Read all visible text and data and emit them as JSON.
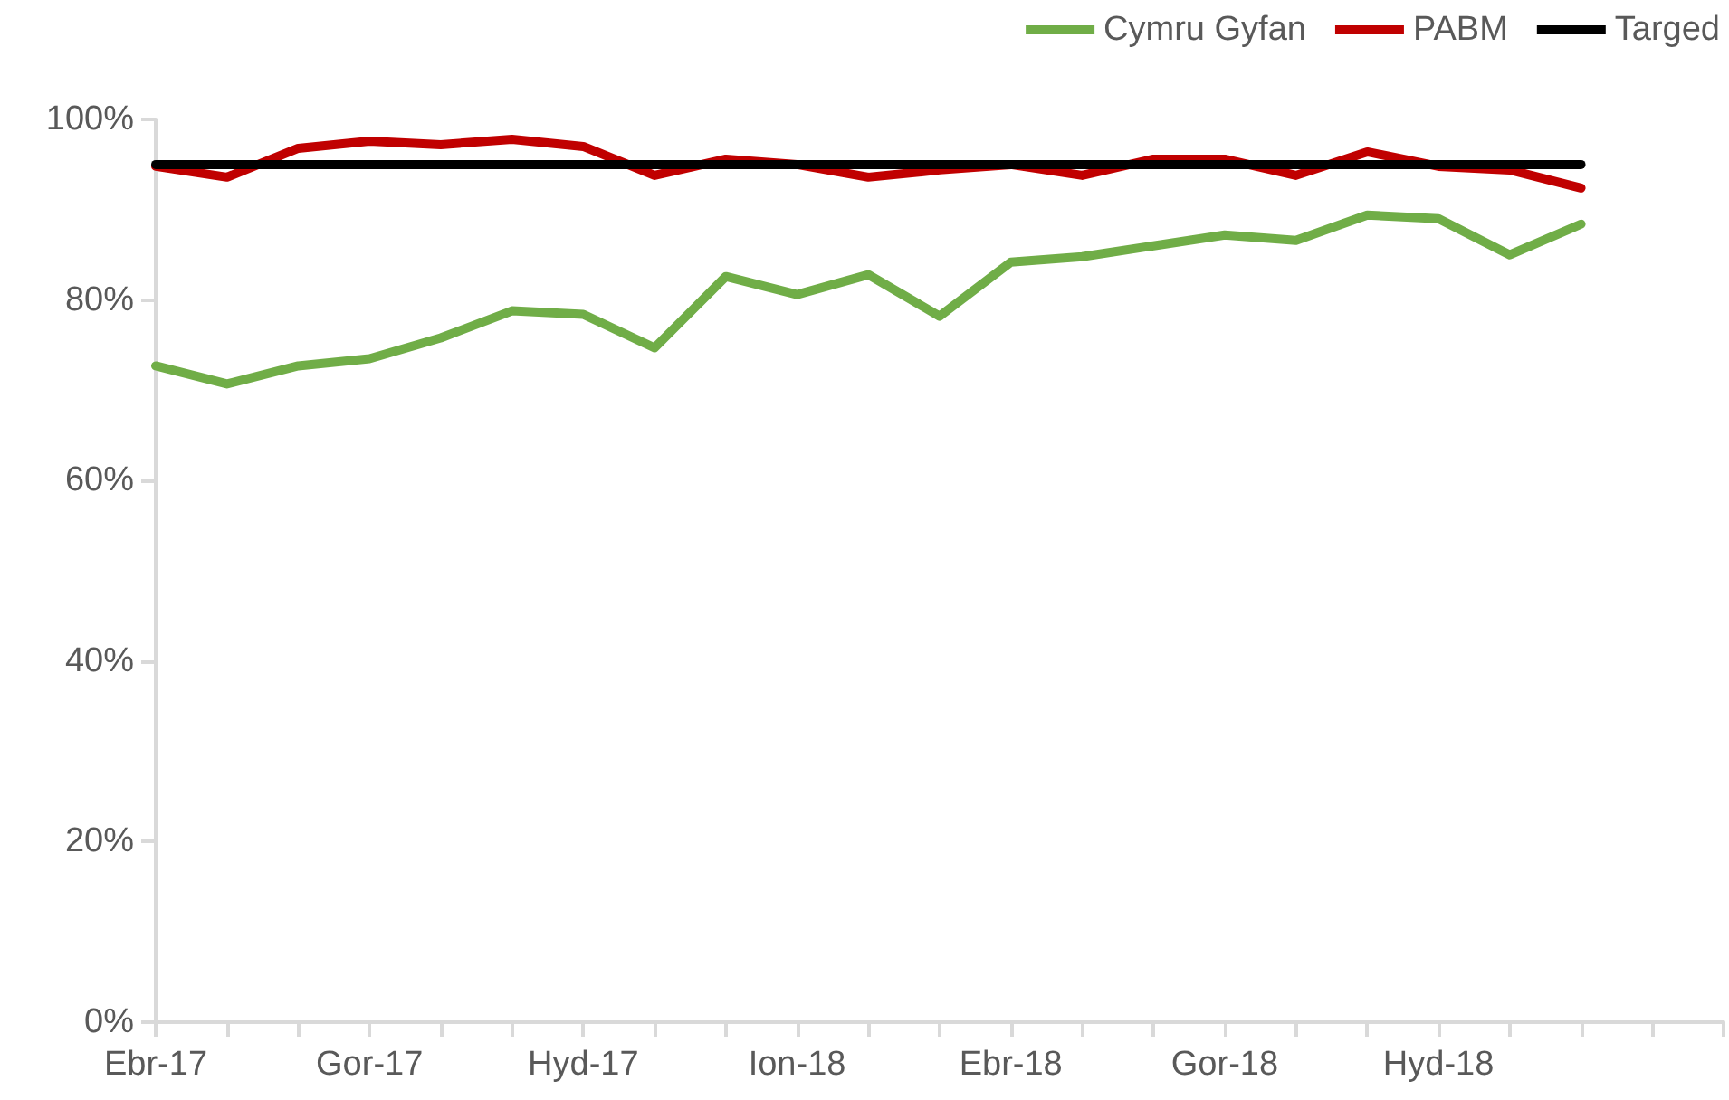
{
  "chart_data": {
    "type": "line",
    "categories": [
      "Ebr-17",
      null,
      null,
      "Gor-17",
      null,
      null,
      "Hyd-17",
      null,
      null,
      "Ion-18",
      null,
      null,
      "Ebr-18",
      null,
      null,
      "Gor-18",
      null,
      null,
      "Hyd-18",
      null,
      null,
      null,
      null
    ],
    "series": [
      {
        "name": "Cymru Gyfan",
        "color": "#70ad47",
        "values": [
          72.7,
          70.7,
          72.7,
          73.5,
          75.8,
          78.8,
          78.4,
          74.7,
          82.6,
          80.6,
          82.8,
          78.2,
          84.2,
          84.8,
          86.0,
          87.2,
          86.6,
          89.4,
          89.0,
          85.0,
          88.4,
          null,
          null
        ]
      },
      {
        "name": "PABM",
        "color": "#c00000",
        "values": [
          94.8,
          93.6,
          96.8,
          97.6,
          97.2,
          97.8,
          97.0,
          93.8,
          95.6,
          95.0,
          93.6,
          94.4,
          95.0,
          93.8,
          95.6,
          95.6,
          93.8,
          96.4,
          94.8,
          94.4,
          92.4,
          null,
          null
        ]
      },
      {
        "name": "Targed",
        "color": "#000000",
        "values": [
          95,
          95,
          95,
          95,
          95,
          95,
          95,
          95,
          95,
          95,
          95,
          95,
          95,
          95,
          95,
          95,
          95,
          95,
          95,
          95,
          95,
          null,
          null
        ]
      }
    ],
    "ylim": [
      0,
      100
    ],
    "yticks": [
      {
        "value": 0,
        "label": "0%"
      },
      {
        "value": 20,
        "label": "20%"
      },
      {
        "value": 40,
        "label": "40%"
      },
      {
        "value": 60,
        "label": "60%"
      },
      {
        "value": 80,
        "label": "80%"
      },
      {
        "value": 100,
        "label": "100%"
      }
    ],
    "grid": false,
    "legend": "top right",
    "marker": "none",
    "line_style": "solid"
  }
}
